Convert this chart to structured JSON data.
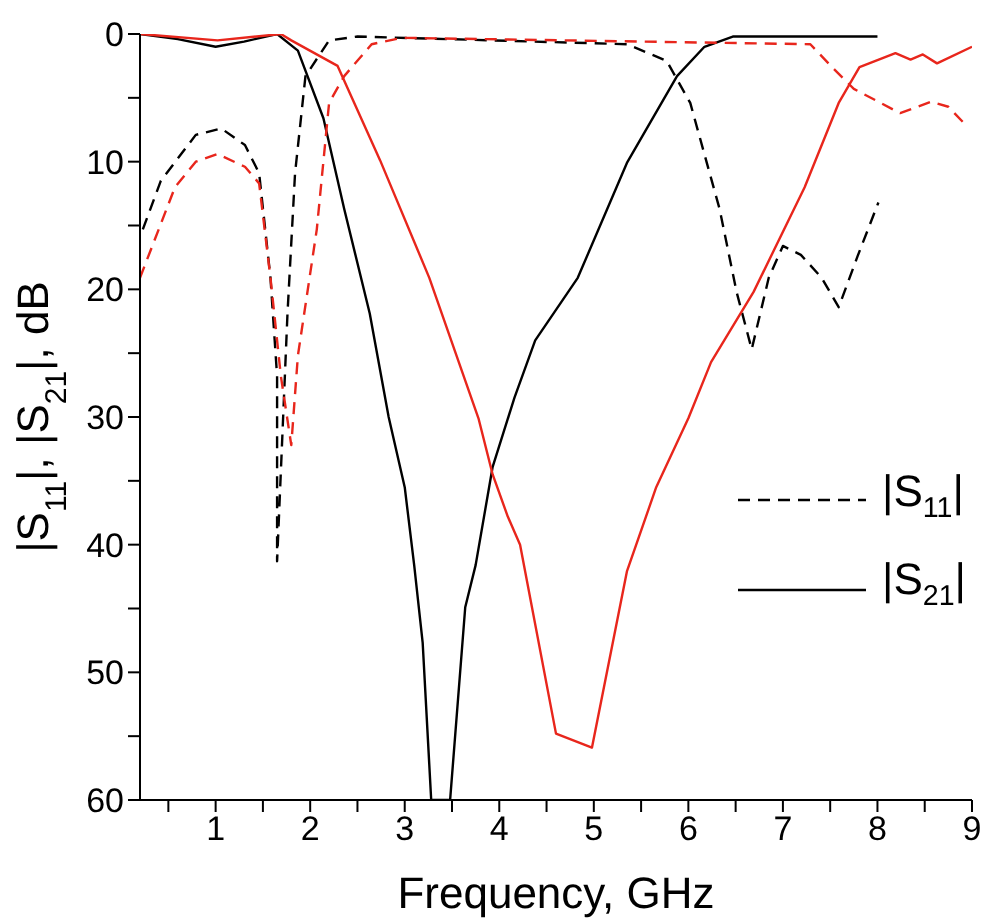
{
  "chart_data": {
    "type": "line",
    "xlabel": "Frequency, GHz",
    "ylabel": "|S$_{11}$|, |S$_{21}$|, dB",
    "xlim": [
      0.2,
      9
    ],
    "xticks": [
      {
        "value": 0.5,
        "label": null
      },
      1,
      {
        "value": 1.5,
        "label": null
      },
      2,
      {
        "value": 2.5,
        "label": null
      },
      3,
      {
        "value": 3.5,
        "label": null
      },
      4,
      {
        "value": 4.5,
        "label": null
      },
      5,
      {
        "value": 5.5,
        "label": null
      },
      6,
      {
        "value": 6.5,
        "label": null
      },
      7,
      {
        "value": 7.5,
        "label": null
      },
      8,
      {
        "value": 8.5,
        "label": null
      },
      9
    ],
    "ylim": [
      60,
      0
    ],
    "yticks": [
      0,
      {
        "value": 5,
        "label": null
      },
      10,
      {
        "value": 15,
        "label": null
      },
      20,
      {
        "value": 25,
        "label": null
      },
      30,
      {
        "value": 35,
        "label": null
      },
      40,
      {
        "value": 45,
        "label": null
      },
      50,
      {
        "value": 55,
        "label": null
      },
      60
    ],
    "grid": false,
    "legend": "right",
    "marker": "none",
    "series": [
      {
        "name": "|S$_{11}$|",
        "color": "#000000",
        "line_style": "dashed",
        "x": [
          0.23,
          0.42,
          0.79,
          1.06,
          1.31,
          1.46,
          1.58,
          1.65,
          1.65,
          1.76,
          1.84,
          1.95,
          2.2,
          2.5,
          5.35,
          5.77,
          6.02,
          6.33,
          6.51,
          6.67,
          6.85,
          7.0,
          7.19,
          7.41,
          7.59,
          7.79,
          8.01
        ],
        "values": [
          15.3,
          11.5,
          7.9,
          7.4,
          8.7,
          10.9,
          19.1,
          26.8,
          41.3,
          21.9,
          10.9,
          3.3,
          0.5,
          0.2,
          0.8,
          2.1,
          5.4,
          13.7,
          20.2,
          24.7,
          19.1,
          16.6,
          17.3,
          19.1,
          21.4,
          17.4,
          13.2
        ]
      },
      {
        "name": "|S$_{21}$|",
        "color": "#000000",
        "line_style": "solid",
        "x": [
          0.2,
          0.6,
          1.0,
          1.3,
          1.65,
          1.87,
          2.14,
          2.36,
          2.63,
          2.83,
          3.0,
          3.1,
          3.19,
          3.28,
          3.48,
          3.64,
          3.75,
          3.93,
          4.16,
          4.38,
          4.83,
          5.35,
          5.88,
          6.17,
          6.47,
          8.0
        ],
        "values": [
          0,
          0.4,
          1,
          0.6,
          0,
          1.3,
          6.6,
          13.7,
          21.9,
          30,
          35.5,
          41.6,
          47.7,
          60,
          60,
          44.9,
          41.6,
          33.9,
          28.5,
          24,
          19.1,
          10.1,
          3.3,
          1,
          0.2,
          0.2
        ]
      },
      {
        "color": "#e8261c",
        "line_style": "dashed",
        "x": [
          0.2,
          0.57,
          0.79,
          1.02,
          1.31,
          1.46,
          1.58,
          1.69,
          1.8,
          1.87,
          2.07,
          2.2,
          2.36,
          2.65,
          2.97,
          7.29,
          7.52,
          7.75,
          8.24,
          8.57,
          8.75,
          8.93
        ],
        "values": [
          19.1,
          12,
          10,
          9.4,
          10.4,
          11.7,
          19.1,
          26.8,
          32.2,
          25.2,
          15.3,
          5.4,
          3.3,
          0.8,
          0.3,
          0.8,
          2.6,
          4.3,
          6.2,
          5.3,
          5.7,
          7.1
        ]
      },
      {
        "color": "#e8261c",
        "line_style": "solid",
        "x": [
          0.2,
          1.02,
          1.69,
          1.8,
          2.29,
          2.74,
          3.26,
          3.78,
          3.93,
          4.09,
          4.22,
          4.6,
          4.98,
          5.35,
          5.66,
          6.0,
          6.24,
          6.69,
          7.23,
          7.59,
          7.81,
          8.19,
          8.35,
          8.48,
          8.63,
          9.0
        ],
        "values": [
          0,
          0.5,
          0,
          0.5,
          2.5,
          9.9,
          19.1,
          30.1,
          34.5,
          37.8,
          40,
          54.8,
          55.9,
          42.1,
          35.5,
          30.1,
          25.7,
          20.2,
          12,
          5.4,
          2.6,
          1.5,
          2,
          1.6,
          2.3,
          1
        ]
      }
    ]
  }
}
